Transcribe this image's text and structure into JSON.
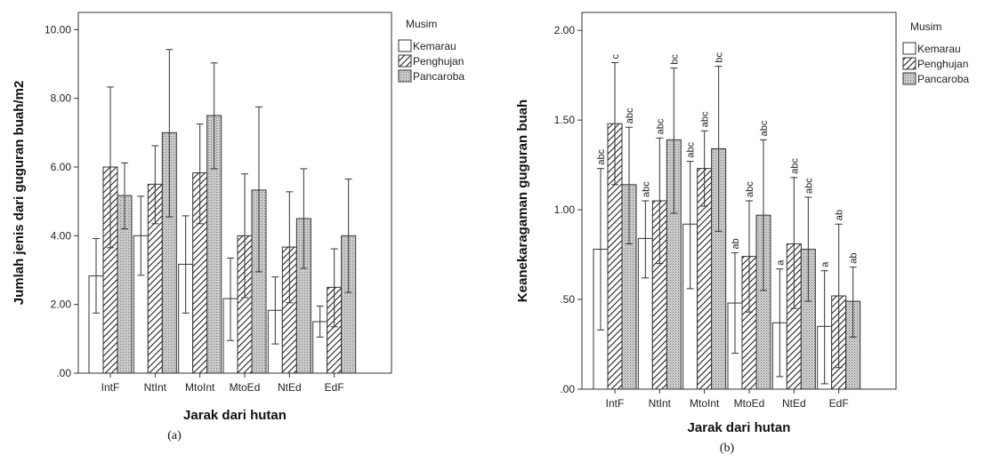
{
  "chart_data": [
    {
      "type": "bar",
      "sublabel": "(a)",
      "xlabel": "Jarak dari hutan",
      "ylabel": "Jumlah jenis dari guguran buah/m2",
      "ylim": [
        0,
        10.5
      ],
      "yticks": [
        ".00",
        "2.00",
        "4.00",
        "6.00",
        "8.00",
        "10.00"
      ],
      "ytick_values": [
        0,
        2,
        4,
        6,
        8,
        10
      ],
      "categories": [
        "IntF",
        "NtInt",
        "MtoInt",
        "MtoEd",
        "NtEd",
        "EdF"
      ],
      "legend_title": "Musim",
      "legend_position": "top-right",
      "series": [
        {
          "name": "Kemarau",
          "pattern": "plain",
          "values": [
            2.83,
            4.0,
            3.17,
            2.17,
            1.83,
            1.5
          ],
          "err_low": [
            1.75,
            2.85,
            1.75,
            0.95,
            0.85,
            1.05
          ],
          "err_high": [
            3.92,
            5.15,
            4.58,
            3.35,
            2.8,
            1.95
          ]
        },
        {
          "name": "Penghujan",
          "pattern": "hatch",
          "values": [
            6.0,
            5.5,
            5.83,
            4.0,
            3.67,
            2.5
          ],
          "err_low": [
            3.65,
            4.35,
            4.35,
            2.2,
            2.05,
            1.35
          ],
          "err_high": [
            8.33,
            6.62,
            7.25,
            5.8,
            5.28,
            3.62
          ]
        },
        {
          "name": "Pancaroba",
          "pattern": "dots",
          "values": [
            5.17,
            7.0,
            7.5,
            5.33,
            4.5,
            4.0
          ],
          "err_low": [
            4.2,
            4.55,
            5.95,
            2.95,
            3.05,
            2.35
          ],
          "err_high": [
            6.12,
            9.42,
            9.03,
            7.75,
            5.95,
            5.65
          ]
        }
      ]
    },
    {
      "type": "bar",
      "sublabel": "(b)",
      "xlabel": "Jarak dari hutan",
      "ylabel": "Keanekaragaman guguran buah",
      "ylim": [
        0,
        2.1
      ],
      "yticks": [
        ".00",
        ".50",
        "1.00",
        "1.50",
        "2.00"
      ],
      "ytick_values": [
        0,
        0.5,
        1.0,
        1.5,
        2.0
      ],
      "categories": [
        "IntF",
        "NtInt",
        "MtoInt",
        "MtoEd",
        "NtEd",
        "EdF"
      ],
      "legend_title": "Musim",
      "legend_position": "top-right",
      "series": [
        {
          "name": "Kemarau",
          "pattern": "plain",
          "values": [
            0.78,
            0.84,
            0.92,
            0.48,
            0.37,
            0.35
          ],
          "err_low": [
            0.33,
            0.62,
            0.56,
            0.2,
            0.07,
            0.03
          ],
          "err_high": [
            1.23,
            1.05,
            1.27,
            0.76,
            0.67,
            0.66
          ],
          "labels": [
            "abc",
            "abc",
            "abc",
            "ab",
            "a",
            "a"
          ]
        },
        {
          "name": "Penghujan",
          "pattern": "hatch",
          "values": [
            1.48,
            1.05,
            1.23,
            0.74,
            0.81,
            0.52
          ],
          "err_low": [
            1.14,
            0.7,
            1.02,
            0.43,
            0.45,
            0.12
          ],
          "err_high": [
            1.82,
            1.4,
            1.44,
            1.05,
            1.18,
            0.92
          ],
          "labels": [
            "c",
            "abc",
            "abc",
            "abc",
            "abc",
            "ab"
          ]
        },
        {
          "name": "Pancaroba",
          "pattern": "dots",
          "values": [
            1.14,
            1.39,
            1.34,
            0.97,
            0.78,
            0.49
          ],
          "err_low": [
            0.81,
            0.98,
            0.88,
            0.55,
            0.49,
            0.29
          ],
          "err_high": [
            1.46,
            1.79,
            1.8,
            1.39,
            1.07,
            0.68
          ],
          "labels": [
            "abc",
            "bc",
            "bc",
            "abc",
            "abc",
            "ab"
          ]
        }
      ]
    }
  ]
}
